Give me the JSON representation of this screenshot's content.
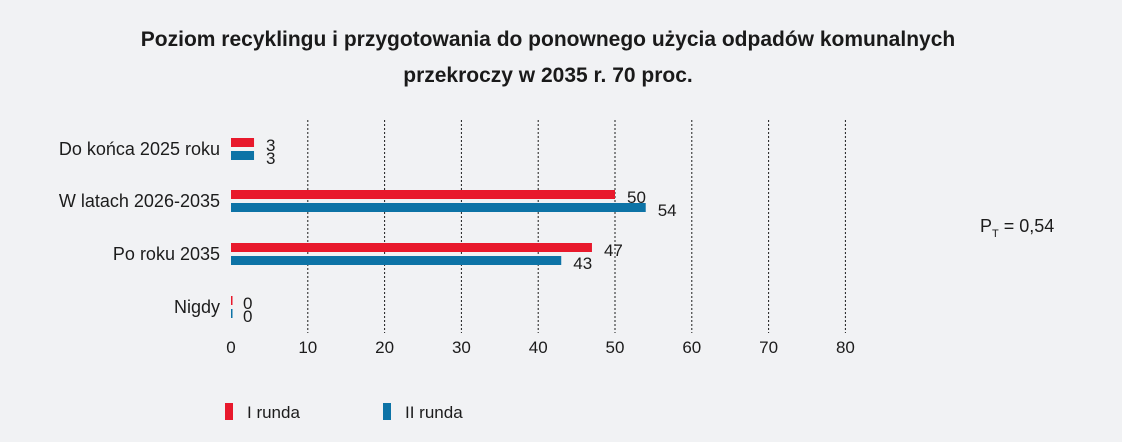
{
  "chart_data": {
    "type": "bar",
    "orientation": "horizontal",
    "title_lines": [
      "Poziom recyklingu i przygotowania do ponownego użycia odpadów komunalnych",
      "przekroczy w 2035 r. 70 proc."
    ],
    "categories": [
      "Do końca 2025 roku",
      "W latach 2026-2035",
      "Po roku 2035",
      "Nigdy"
    ],
    "series": [
      {
        "name": "I runda",
        "color": "#e8192c",
        "values": [
          3,
          50,
          47,
          0
        ]
      },
      {
        "name": "II runda",
        "color": "#0d73a6",
        "values": [
          3,
          54,
          43,
          0
        ]
      }
    ],
    "xlim": [
      0,
      80
    ],
    "xticks": [
      0,
      10,
      20,
      30,
      40,
      50,
      60,
      70,
      80
    ],
    "grid": true,
    "legend_position": "bottom-left",
    "annotation": {
      "main": "P",
      "sub": "T",
      "rest": " = 0,54"
    }
  }
}
